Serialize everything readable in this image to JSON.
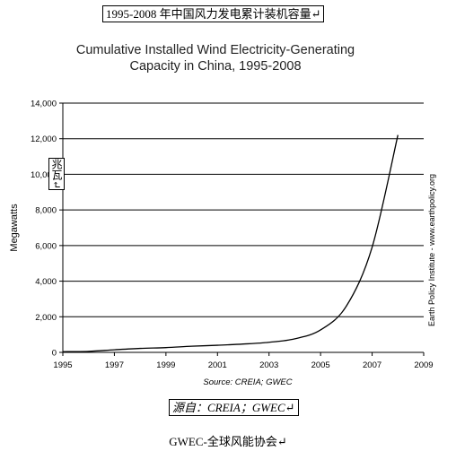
{
  "captions": {
    "top": "1995-2008 年中国风力发电累计装机容量↵",
    "source_box": "源自：CREIA；GWEC↵",
    "ylabel_box": "兆瓦↵",
    "bottom": "GWEC-全球风能协会↵"
  },
  "chart_data": {
    "type": "line",
    "title_line1": "Cumulative Installed Wind Electricity-Generating",
    "title_line2": "Capacity in China, 1995-2008",
    "xlabel": "",
    "ylabel": "Megawatts",
    "source": "Source: CREIA; GWEC",
    "side_note": "Earth Policy Institute - www.earthpolicy.org",
    "xlim": [
      1995,
      2009
    ],
    "ylim": [
      0,
      14000
    ],
    "x_ticks": [
      "1995",
      "1997",
      "1999",
      "2001",
      "2003",
      "2005",
      "2007",
      "2009"
    ],
    "y_ticks": [
      "0",
      "2,000",
      "4,000",
      "6,000",
      "8,000",
      "10,000",
      "12,000",
      "14,000"
    ],
    "grid": "horizontal",
    "series": [
      {
        "color": "#000000",
        "x": [
          1995,
          1996,
          1997,
          1998,
          1999,
          2000,
          2001,
          2002,
          2003,
          2004,
          2005,
          2006,
          2007,
          2008
        ],
        "values": [
          38,
          57,
          146,
          224,
          268,
          346,
          400,
          468,
          567,
          764,
          1260,
          2599,
          5910,
          12210
        ]
      }
    ]
  }
}
